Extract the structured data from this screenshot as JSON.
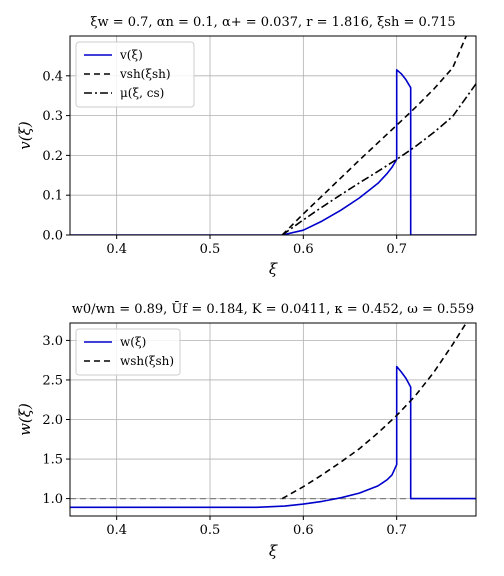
{
  "chart_data": [
    {
      "type": "line",
      "title": "ξw = 0.7, αn = 0.1, α+ = 0.037, r = 1.816, ξsh = 0.715",
      "xlabel": "ξ",
      "ylabel": "v(ξ)",
      "xlim": [
        0.35,
        0.785
      ],
      "ylim": [
        0.0,
        0.5
      ],
      "xticks": [
        "0.4",
        "0.5",
        "0.6",
        "0.7"
      ],
      "yticks": [
        "0.0",
        "0.1",
        "0.2",
        "0.3",
        "0.4"
      ],
      "grid": true,
      "legend_position": "top-left",
      "series": [
        {
          "name": "v(ξ)",
          "color": "#0000cc",
          "style": "solid",
          "x": [
            0.35,
            0.5774,
            0.6,
            0.62,
            0.64,
            0.66,
            0.68,
            0.69,
            0.695,
            0.7,
            0.7,
            0.705,
            0.71,
            0.715,
            0.715,
            0.785
          ],
          "y": [
            0.0,
            0.0,
            0.012,
            0.035,
            0.062,
            0.093,
            0.13,
            0.155,
            0.17,
            0.19,
            0.415,
            0.405,
            0.39,
            0.37,
            0.0,
            0.0
          ]
        },
        {
          "name": "vsh(ξsh)",
          "color": "#000000",
          "style": "dashed",
          "x": [
            0.5774,
            0.6,
            0.62,
            0.64,
            0.66,
            0.68,
            0.7,
            0.72,
            0.74,
            0.76,
            0.7745
          ],
          "y": [
            0.0,
            0.053,
            0.098,
            0.143,
            0.188,
            0.232,
            0.276,
            0.32,
            0.367,
            0.42,
            0.5
          ]
        },
        {
          "name": "μ(ξ, cs)",
          "color": "#000000",
          "style": "dashdot",
          "x": [
            0.5774,
            0.6,
            0.62,
            0.64,
            0.66,
            0.68,
            0.7,
            0.72,
            0.74,
            0.76,
            0.785
          ],
          "y": [
            0.0,
            0.038,
            0.07,
            0.101,
            0.131,
            0.16,
            0.19,
            0.222,
            0.258,
            0.298,
            0.38
          ]
        }
      ]
    },
    {
      "type": "line",
      "title": "w0/wn = 0.89, Ūf = 0.184, K = 0.0411, κ = 0.452, ω = 0.559",
      "xlabel": "ξ",
      "ylabel": "w(ξ)",
      "xlim": [
        0.35,
        0.785
      ],
      "ylim": [
        0.78,
        3.22
      ],
      "xticks": [
        "0.4",
        "0.5",
        "0.6",
        "0.7"
      ],
      "yticks": [
        "1.0",
        "1.5",
        "2.0",
        "2.5",
        "3.0"
      ],
      "grid": true,
      "legend_position": "top-left",
      "reference_line_y": 1.0,
      "series": [
        {
          "name": "w(ξ)",
          "color": "#0000cc",
          "style": "solid",
          "x": [
            0.35,
            0.55,
            0.58,
            0.6,
            0.62,
            0.64,
            0.66,
            0.68,
            0.69,
            0.695,
            0.7,
            0.7,
            0.705,
            0.71,
            0.715,
            0.715,
            0.785
          ],
          "y": [
            0.89,
            0.89,
            0.905,
            0.93,
            0.965,
            1.01,
            1.07,
            1.16,
            1.24,
            1.3,
            1.43,
            2.67,
            2.6,
            2.52,
            2.41,
            1.0,
            1.0
          ]
        },
        {
          "name": "wsh(ξsh)",
          "color": "#000000",
          "style": "dashed",
          "x": [
            0.5774,
            0.6,
            0.62,
            0.64,
            0.66,
            0.68,
            0.7,
            0.72,
            0.74,
            0.76,
            0.7745
          ],
          "y": [
            1.0,
            1.15,
            1.3,
            1.46,
            1.63,
            1.83,
            2.05,
            2.3,
            2.6,
            2.95,
            3.22
          ]
        }
      ]
    }
  ]
}
